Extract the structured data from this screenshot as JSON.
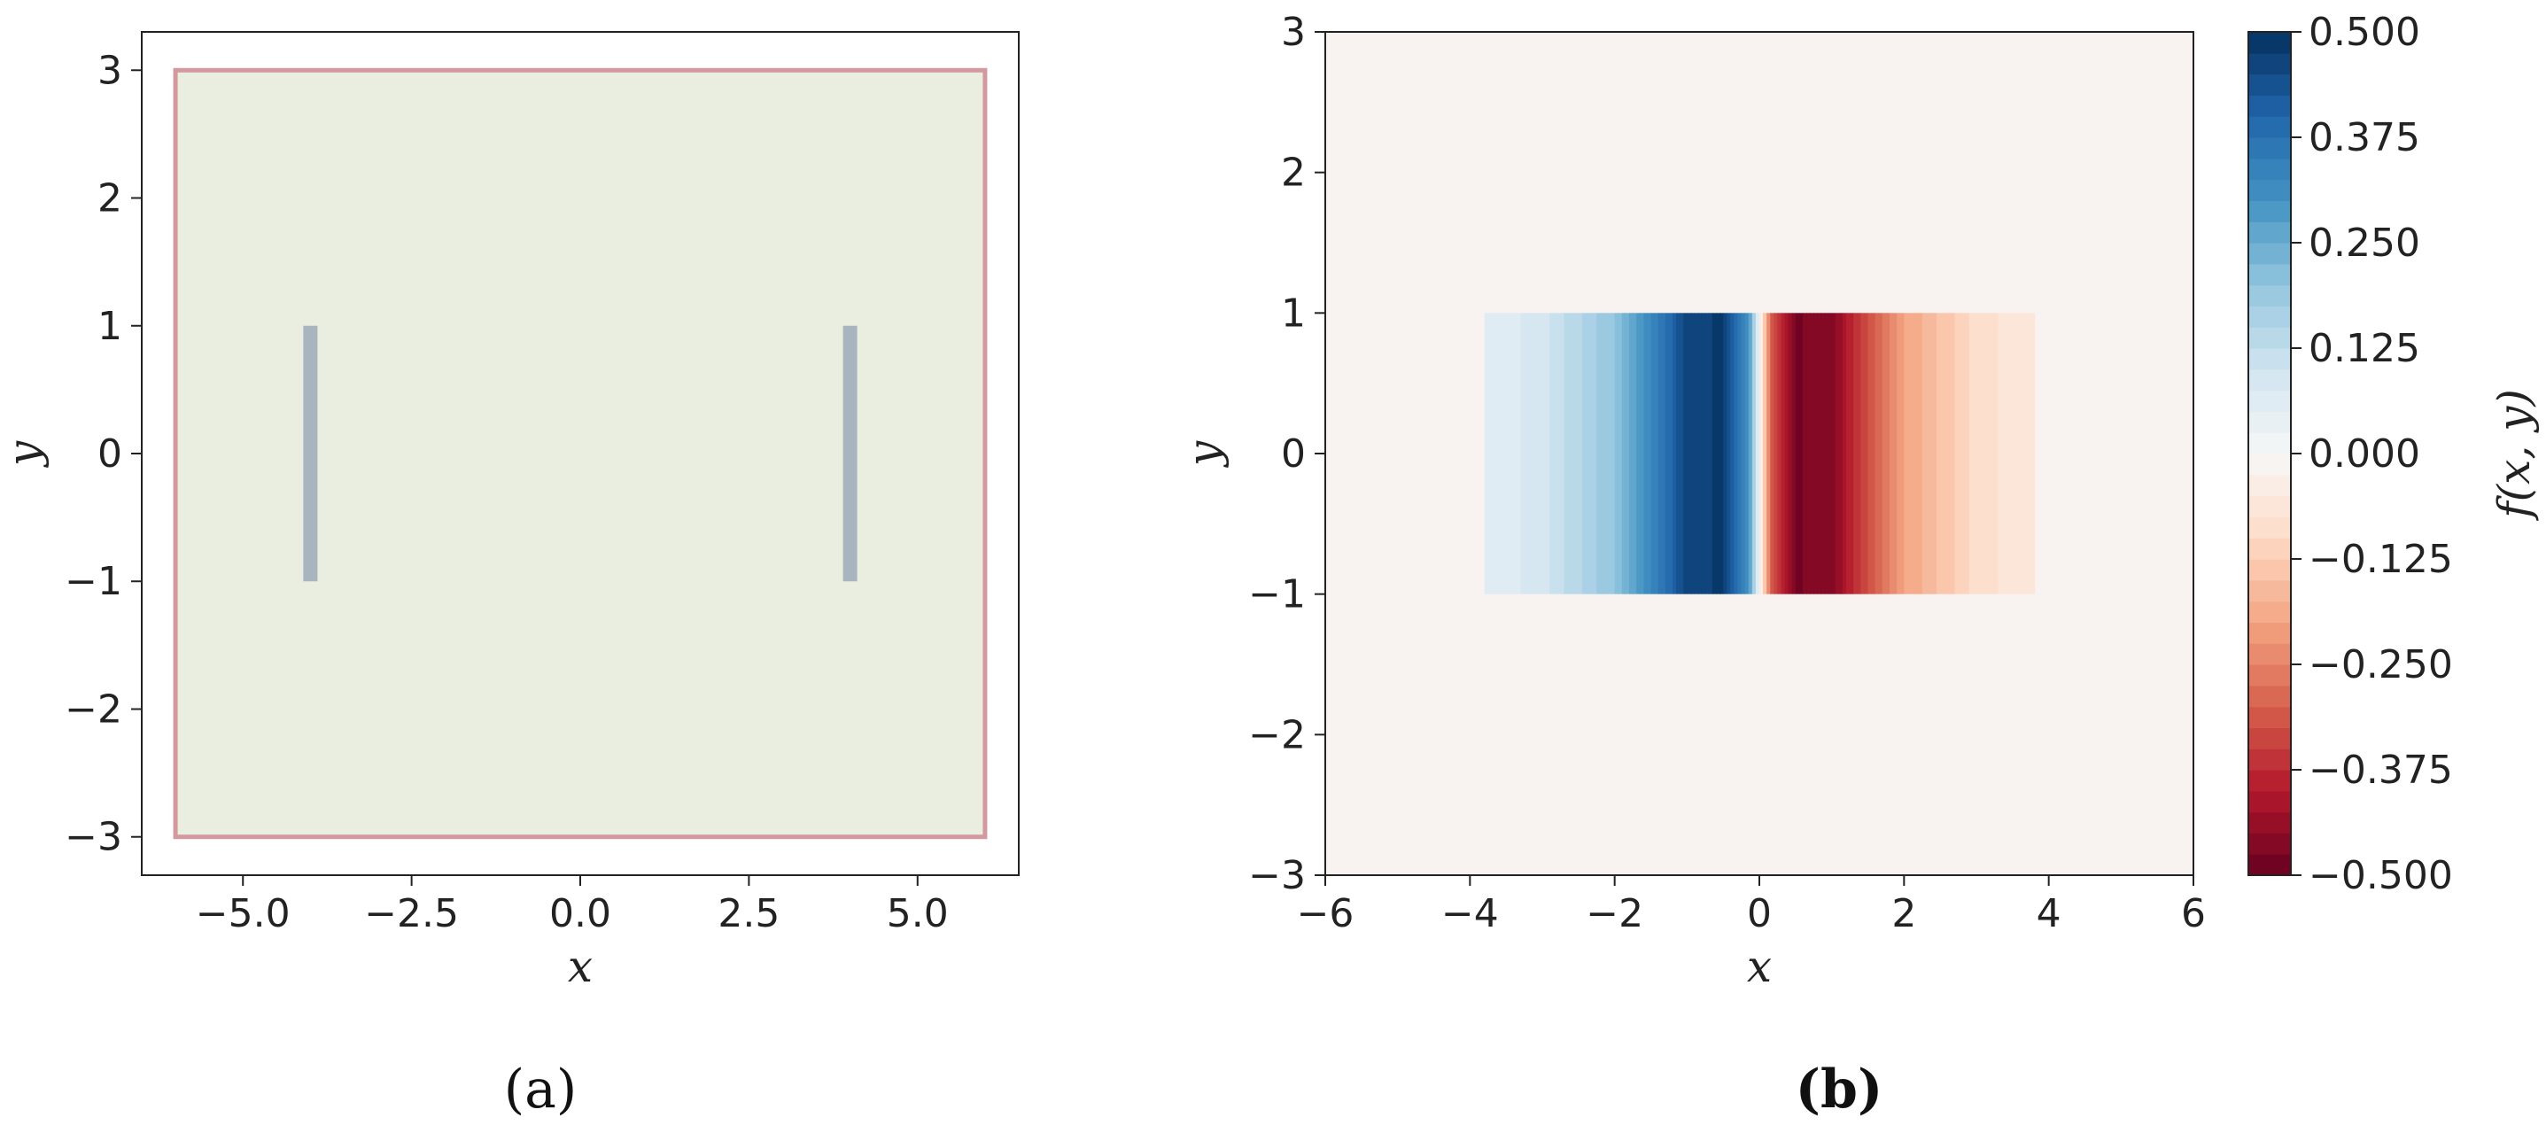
{
  "chart_data": [
    {
      "type": "scatter",
      "panel_label": "(a)",
      "xlabel": "x",
      "ylabel": "y",
      "xlim": [
        -6.5,
        6.5
      ],
      "ylim": [
        -3.3,
        3.3
      ],
      "xticks": [
        -5.0,
        -2.5,
        0.0,
        2.5,
        5.0
      ],
      "xtick_labels": [
        "−5.0",
        "−2.5",
        "0.0",
        "2.5",
        "5.0"
      ],
      "yticks": [
        -3,
        -2,
        -1,
        0,
        1,
        2,
        3
      ],
      "ytick_labels": [
        "−3",
        "−2",
        "−1",
        "0",
        "1",
        "2",
        "3"
      ],
      "domain_region": {
        "x": [
          -6,
          6
        ],
        "y": [
          -3,
          3
        ],
        "fill": "#eaeee0",
        "boundary_color": "#d4999e"
      },
      "plates": [
        {
          "x": -4,
          "y": [
            -1,
            1
          ],
          "color": "#a9b5be"
        },
        {
          "x": 4,
          "y": [
            -1,
            1
          ],
          "color": "#a9b5be"
        }
      ],
      "grid": false
    },
    {
      "type": "heatmap",
      "panel_label": "(b)",
      "xlabel": "x",
      "ylabel": "y",
      "colorbar_label": "f(x, y)",
      "xlim": [
        -6,
        6
      ],
      "ylim": [
        -3,
        3
      ],
      "xticks": [
        -6,
        -4,
        -2,
        0,
        2,
        4,
        6
      ],
      "xtick_labels": [
        "−6",
        "−4",
        "−2",
        "0",
        "2",
        "4",
        "6"
      ],
      "yticks": [
        -3,
        -2,
        -1,
        0,
        1,
        2,
        3
      ],
      "ytick_labels": [
        "−3",
        "−2",
        "−1",
        "0",
        "1",
        "2",
        "3"
      ],
      "background_value": 0.0,
      "background_color": "#f8f3f1",
      "colormap": "RdBu",
      "vmin": -0.5,
      "vmax": 0.5,
      "colorbar_ticks": [
        0.5,
        0.375,
        0.25,
        0.125,
        0.0,
        -0.125,
        -0.25,
        -0.375,
        -0.5
      ],
      "colorbar_tick_labels": [
        "0.500",
        "0.375",
        "0.250",
        "0.125",
        "0.000",
        "−0.125",
        "−0.250",
        "−0.375",
        "−0.500"
      ],
      "colorbar_levels": 40,
      "field_region": {
        "x": [
          -3.8,
          3.8
        ],
        "y": [
          -1,
          1
        ]
      },
      "field_profile": {
        "x": [
          -3.8,
          -3.0,
          -2.0,
          -1.5,
          -1.0,
          -0.5,
          -0.15,
          0.0,
          0.15,
          0.5,
          1.0,
          1.5,
          2.0,
          3.0,
          3.8
        ],
        "value": [
          0.05,
          0.09,
          0.2,
          0.32,
          0.46,
          0.48,
          0.3,
          0.0,
          -0.3,
          -0.48,
          -0.46,
          -0.32,
          -0.2,
          -0.09,
          -0.05
        ]
      },
      "grid": false
    }
  ]
}
